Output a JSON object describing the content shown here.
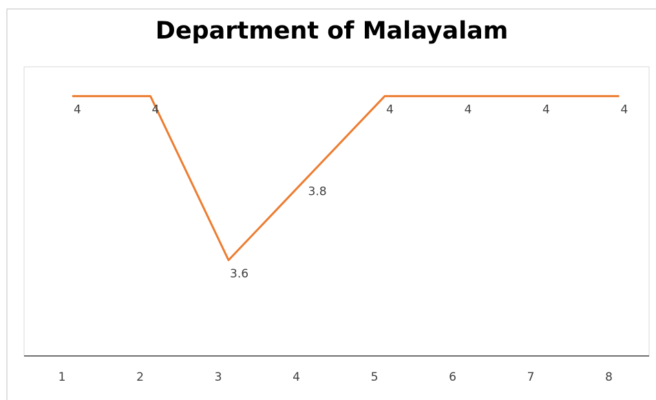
{
  "chart_data": {
    "type": "line",
    "title": "Department of Malayalam",
    "categories": [
      "1",
      "2",
      "3",
      "4",
      "5",
      "6",
      "7",
      "8"
    ],
    "values": [
      4,
      4,
      3.6,
      3.8,
      4,
      4,
      4,
      4
    ],
    "color": "#ed7d31",
    "ylim": [
      3.4,
      4.1
    ],
    "grid": false,
    "data_labels": true
  }
}
